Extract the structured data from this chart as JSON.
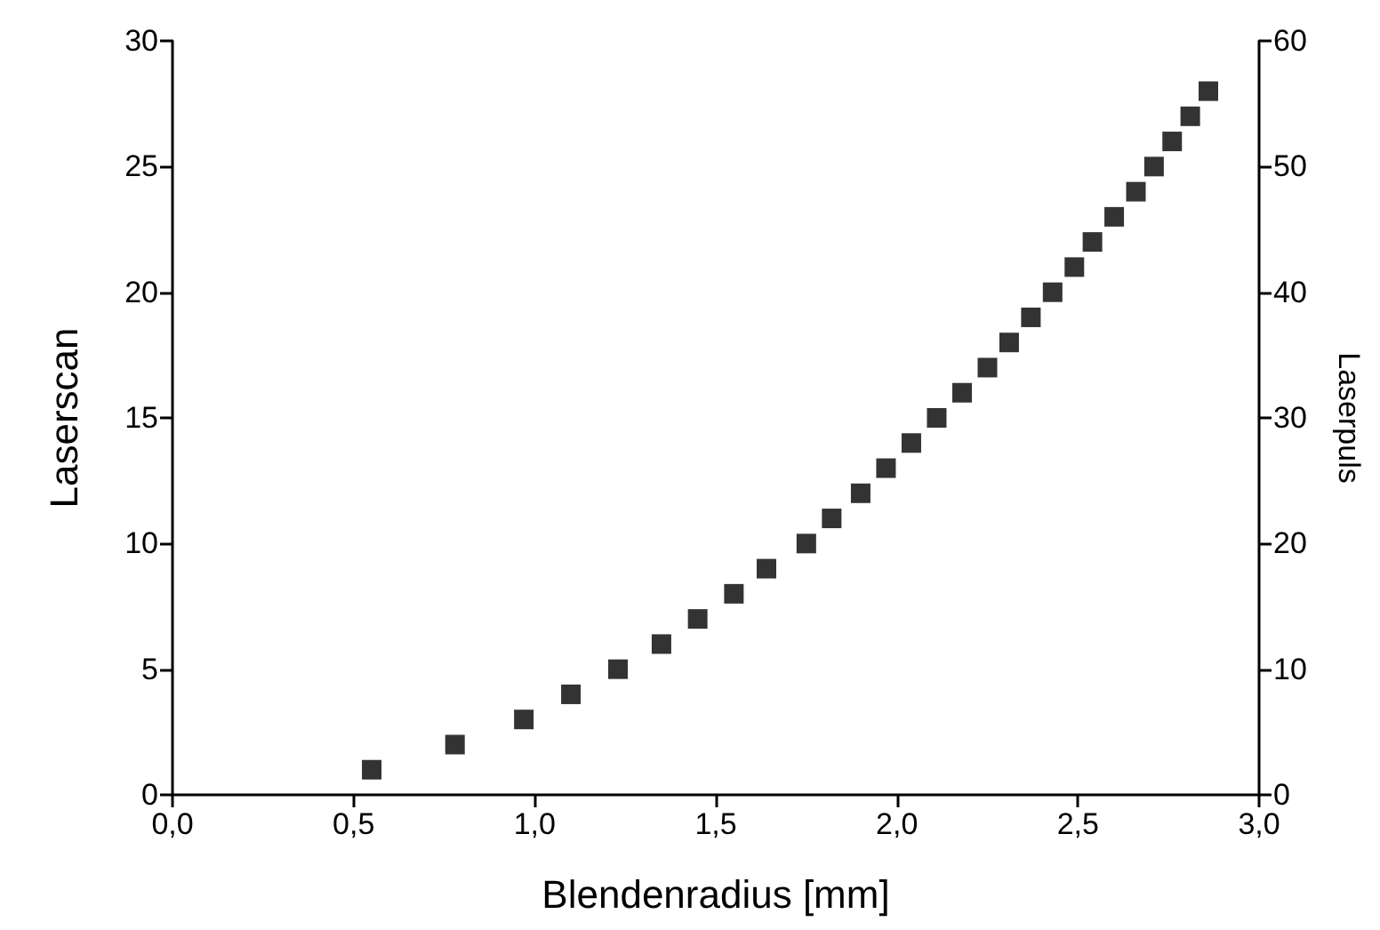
{
  "chart_data": {
    "type": "scatter",
    "xlabel": "Blendenradius [mm]",
    "ylabel": "Laserscan",
    "y2label": "Laserpuls",
    "x": [
      0.55,
      0.78,
      0.97,
      1.1,
      1.23,
      1.35,
      1.45,
      1.55,
      1.64,
      1.75,
      1.82,
      1.9,
      1.97,
      2.04,
      2.11,
      2.18,
      2.25,
      2.31,
      2.37,
      2.43,
      2.49,
      2.54,
      2.6,
      2.66,
      2.71,
      2.76,
      2.81,
      2.86
    ],
    "series": [
      {
        "color": "#000000",
        "values": [
          1,
          2,
          3,
          4,
          5,
          6,
          7,
          8,
          9,
          10,
          11,
          12,
          13,
          14,
          15,
          16,
          17,
          18,
          19,
          20,
          21,
          22,
          23,
          24,
          25,
          26,
          27,
          28
        ]
      }
    ],
    "xlim": [
      0,
      3
    ],
    "xticks": [
      {
        "value": 0,
        "label": "0,0"
      },
      {
        "value": 0.5,
        "label": "0,5"
      },
      {
        "value": 1,
        "label": "1,0"
      },
      {
        "value": 1.5,
        "label": "1,5"
      },
      {
        "value": 2,
        "label": "2,0"
      },
      {
        "value": 2.5,
        "label": "2,5"
      },
      {
        "value": 3,
        "label": "3,0"
      }
    ],
    "ylim": [
      0,
      30
    ],
    "yticks": [
      0,
      5,
      10,
      15,
      20,
      25,
      30
    ],
    "y2lim": [
      0,
      60
    ],
    "y2ticks": [
      0,
      10,
      20,
      30,
      40,
      50,
      60
    ],
    "grid": false,
    "marker": "square"
  }
}
